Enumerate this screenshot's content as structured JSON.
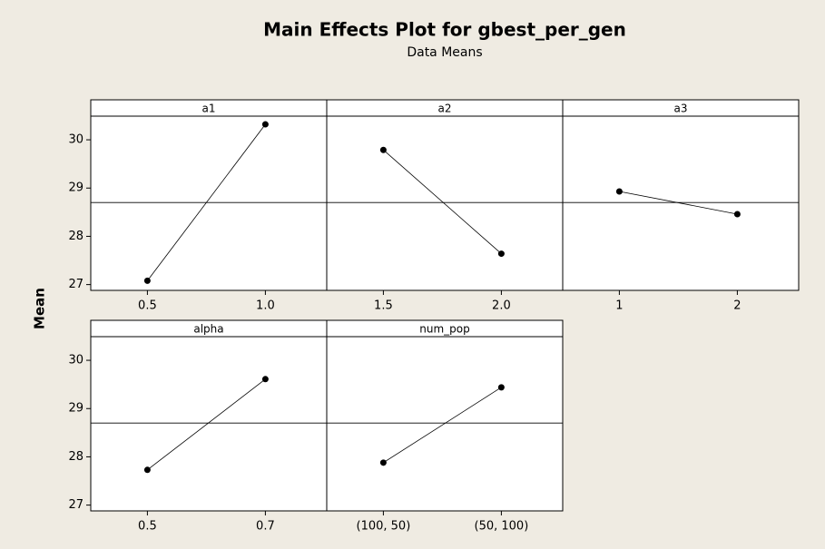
{
  "chart_data": {
    "type": "line",
    "title": "Main Effects Plot for gbest_per_gen",
    "subtitle": "Data Means",
    "ylabel": "Mean",
    "color": "#000000",
    "ylim": [
      26.88,
      30.49
    ],
    "yticks": [
      27,
      28,
      29,
      30
    ],
    "mean_line": 28.7,
    "panels": [
      {
        "name": "a1",
        "categories": [
          "0.5",
          "1.0"
        ],
        "values": [
          27.08,
          30.32
        ]
      },
      {
        "name": "a2",
        "categories": [
          "1.5",
          "2.0"
        ],
        "values": [
          29.79,
          27.64
        ]
      },
      {
        "name": "a3",
        "categories": [
          "1",
          "2"
        ],
        "values": [
          28.93,
          28.46
        ]
      },
      {
        "name": "alpha",
        "categories": [
          "0.5",
          "0.7"
        ],
        "values": [
          27.73,
          29.61
        ]
      },
      {
        "name": "num_pop",
        "categories": [
          "(100, 50)",
          "(50, 100)"
        ],
        "values": [
          27.88,
          29.44
        ]
      }
    ]
  }
}
